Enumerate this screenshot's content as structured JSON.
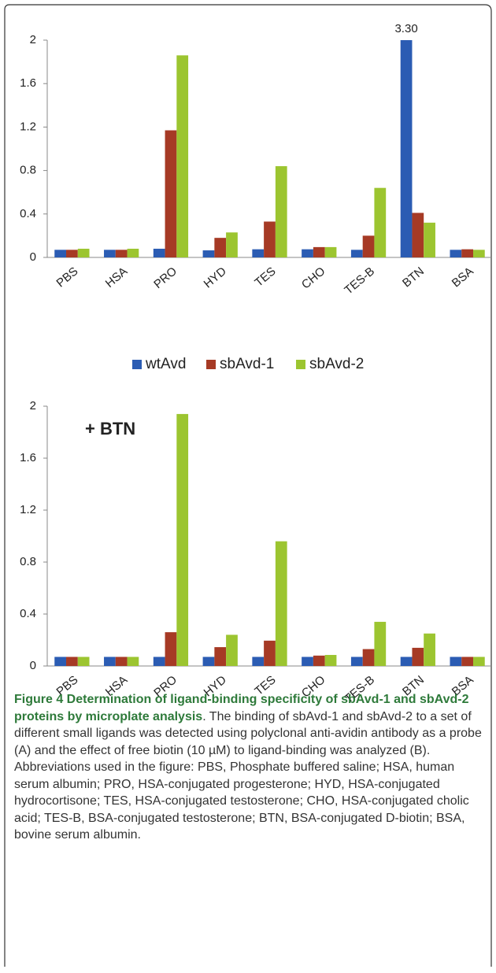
{
  "chart_data": [
    {
      "type": "bar",
      "categories": [
        "PBS",
        "HSA",
        "PRO",
        "HYD",
        "TES",
        "CHO",
        "TES-B",
        "BTN",
        "BSA"
      ],
      "series": [
        {
          "name": "wtAvd",
          "color": "#2b5cb3",
          "values": [
            0.07,
            0.07,
            0.08,
            0.065,
            0.075,
            0.075,
            0.07,
            3.3,
            0.07
          ],
          "value_labels": [
            null,
            null,
            null,
            null,
            null,
            null,
            null,
            "3.30",
            null
          ]
        },
        {
          "name": "sbAvd-1",
          "color": "#a63a25",
          "values": [
            0.07,
            0.07,
            1.17,
            0.18,
            0.33,
            0.095,
            0.2,
            0.41,
            0.075
          ]
        },
        {
          "name": "sbAvd-2",
          "color": "#9cc530",
          "values": [
            0.08,
            0.08,
            1.86,
            0.23,
            0.84,
            0.095,
            0.64,
            0.32,
            0.07
          ]
        }
      ],
      "ylim": [
        0,
        2
      ],
      "yticks": [
        0,
        0.4,
        0.8,
        1.2,
        1.6,
        2
      ],
      "legend": "bottom"
    },
    {
      "type": "bar",
      "annotation": "+ BTN",
      "categories": [
        "PBS",
        "HSA",
        "PRO",
        "HYD",
        "TES",
        "CHO",
        "TES-B",
        "BTN",
        "BSA"
      ],
      "series": [
        {
          "color": "#2b5cb3",
          "values": [
            0.07,
            0.07,
            0.07,
            0.07,
            0.07,
            0.07,
            0.07,
            0.07,
            0.07
          ]
        },
        {
          "color": "#a63a25",
          "values": [
            0.07,
            0.07,
            0.26,
            0.145,
            0.195,
            0.08,
            0.13,
            0.14,
            0.07
          ]
        },
        {
          "color": "#9cc530",
          "values": [
            0.07,
            0.07,
            1.94,
            0.24,
            0.96,
            0.085,
            0.34,
            0.25,
            0.07
          ]
        }
      ],
      "ylim": [
        0,
        2
      ],
      "yticks": [
        0,
        0.4,
        0.8,
        1.2,
        1.6,
        2
      ]
    }
  ],
  "caption": {
    "label": "Figure 4 Determination of ligand-binding specificity of sbAvd-1 and sbAvd-2 proteins by microplate analysis",
    "text": ". The binding of sbAvd-1 and sbAvd-2 to a set of different small ligands was detected using polyclonal anti-avidin antibody as a probe (A) and the effect of free biotin (10 µM) to ligand-binding was analyzed (B). Abbreviations used in the figure: PBS, Phosphate buffered saline; HSA, human serum albumin; PRO, HSA-conjugated progesterone; HYD, HSA-conjugated hydrocortisone; TES, HSA-conjugated testosterone; CHO, HSA-conjugated cholic acid; TES-B, BSA-conjugated testosterone; BTN, BSA-conjugated D-biotin; BSA, bovine serum albumin."
  }
}
